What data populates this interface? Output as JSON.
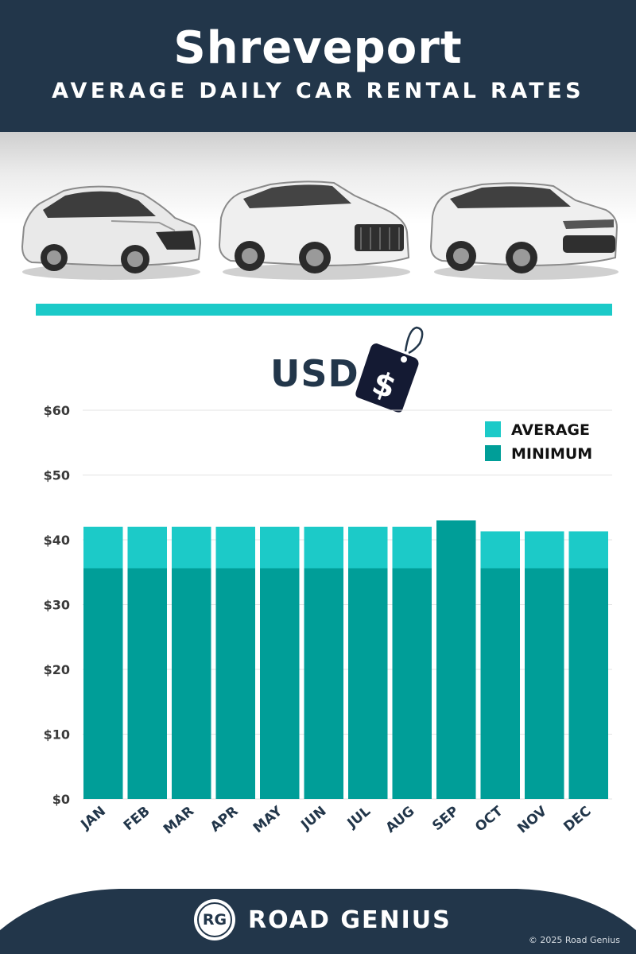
{
  "header": {
    "title": "Shreveport",
    "subtitle": "AVERAGE DAILY CAR RENTAL RATES"
  },
  "currency_label": "USD",
  "tag_symbol": "$",
  "footer": {
    "brand_initials": "RG",
    "brand_name": "ROAD GENIUS",
    "copyright": "© 2025 Road Genius"
  },
  "colors": {
    "header_bg": "#22364a",
    "average": "#1ccac8",
    "minimum": "#009e98",
    "accent_line": "#1ccac8",
    "axis_text": "#3a3a3a",
    "month_text": "#22364a"
  },
  "chart_data": {
    "type": "bar",
    "stacking": "overlay",
    "categories": [
      "JAN",
      "FEB",
      "MAR",
      "APR",
      "MAY",
      "JUN",
      "JUL",
      "AUG",
      "SEP",
      "OCT",
      "NOV",
      "DEC"
    ],
    "series": [
      {
        "name": "AVERAGE",
        "values": [
          42,
          42,
          42,
          42,
          42,
          42,
          42,
          42,
          43,
          41.3,
          41.3,
          41.3
        ]
      },
      {
        "name": "MINIMUM",
        "values": [
          35.6,
          35.6,
          35.6,
          35.6,
          35.6,
          35.6,
          35.6,
          35.6,
          43,
          35.6,
          35.6,
          35.6
        ]
      }
    ],
    "y_ticks": [
      "$0",
      "$10",
      "$20",
      "$30",
      "$40",
      "$50",
      "$60"
    ],
    "ylim": [
      0,
      60
    ],
    "grid": true,
    "legend_position": "top-right"
  }
}
